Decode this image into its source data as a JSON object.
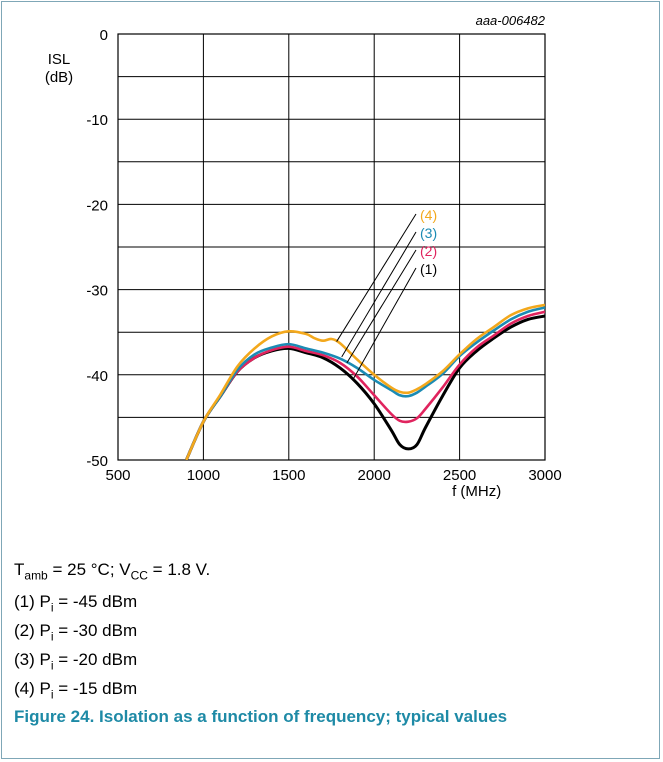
{
  "chart_data": {
    "type": "line",
    "figure_id": "aaa-006482",
    "ylabel": "ISL",
    "ylabel_unit": "(dB)",
    "xlabel": "f (MHz)",
    "xlim": [
      500,
      3000
    ],
    "ylim": [
      -50,
      0
    ],
    "x_ticks": [
      500,
      1000,
      1500,
      2000,
      2500,
      3000
    ],
    "x_tick_labels": [
      "500",
      "1000",
      "1500",
      "2000",
      "2500",
      "3000"
    ],
    "y_ticks": [
      0,
      -10,
      -20,
      -30,
      -40,
      -50
    ],
    "y_tick_labels": [
      "0",
      "-10",
      "-20",
      "-30",
      "-40",
      "-50"
    ],
    "grid": true,
    "series": [
      {
        "name": "(1)",
        "color": "#000000",
        "x": [
          900,
          1000,
          1100,
          1200,
          1300,
          1400,
          1500,
          1600,
          1700,
          1800,
          1900,
          2000,
          2100,
          2150,
          2200,
          2250,
          2300,
          2400,
          2500,
          2600,
          2700,
          2800,
          2900,
          3000
        ],
        "y": [
          -50,
          -45.5,
          -42.5,
          -39.6,
          -38,
          -37.2,
          -36.9,
          -37.4,
          -38,
          -39.2,
          -41,
          -43.4,
          -46.5,
          -48.2,
          -48.7,
          -48.2,
          -46.2,
          -42.5,
          -39.2,
          -37.2,
          -35.7,
          -34.4,
          -33.5,
          -33.1
        ]
      },
      {
        "name": "(2)",
        "color": "#e0245e",
        "x": [
          900,
          1000,
          1100,
          1200,
          1300,
          1400,
          1500,
          1600,
          1700,
          1800,
          1900,
          2000,
          2100,
          2150,
          2200,
          2250,
          2300,
          2400,
          2500,
          2600,
          2700,
          2800,
          2900,
          3000
        ],
        "y": [
          -50,
          -45.5,
          -42.5,
          -39.6,
          -38,
          -37.1,
          -36.7,
          -37.2,
          -37.7,
          -38.6,
          -40.2,
          -42.4,
          -44.6,
          -45.4,
          -45.5,
          -45.1,
          -44,
          -41.5,
          -38.8,
          -36.8,
          -35.4,
          -34,
          -33.1,
          -32.6
        ]
      },
      {
        "name": "(3)",
        "color": "#1b8bb4",
        "x": [
          900,
          1000,
          1100,
          1200,
          1300,
          1400,
          1500,
          1600,
          1700,
          1800,
          1900,
          2000,
          2100,
          2150,
          2200,
          2250,
          2300,
          2400,
          2500,
          2600,
          2700,
          2800,
          2900,
          3000
        ],
        "y": [
          -50,
          -45.5,
          -42.5,
          -39.4,
          -37.6,
          -36.8,
          -36.4,
          -36.9,
          -37.4,
          -38.1,
          -39.2,
          -40.6,
          -41.8,
          -42.4,
          -42.5,
          -42.1,
          -41.4,
          -39.9,
          -37.8,
          -36.2,
          -34.8,
          -33.5,
          -32.6,
          -32.1
        ]
      },
      {
        "name": "(4)",
        "color": "#f3a81c",
        "x": [
          900,
          1000,
          1100,
          1200,
          1300,
          1400,
          1500,
          1600,
          1650,
          1700,
          1750,
          1800,
          1900,
          2000,
          2100,
          2150,
          2200,
          2250,
          2300,
          2400,
          2500,
          2600,
          2700,
          2800,
          2900,
          3000
        ],
        "y": [
          -50,
          -45.5,
          -42.3,
          -39,
          -36.9,
          -35.5,
          -34.9,
          -35.2,
          -35.7,
          -36,
          -35.8,
          -36.3,
          -38.2,
          -40,
          -41.5,
          -42,
          -42.1,
          -41.7,
          -41.1,
          -39.6,
          -37.6,
          -35.8,
          -34.4,
          -33,
          -32.2,
          -31.8
        ]
      }
    ],
    "annotations": [
      "(4)",
      "(3)",
      "(2)",
      "(1)"
    ]
  },
  "caption": {
    "conditions": {
      "t_sym": "T",
      "t_sub": "amb",
      "t_rest": " = 25 °C; V",
      "v_sub": "CC",
      "v_rest": " = 1.8 V."
    },
    "notes": [
      {
        "num": "(1) P",
        "sub": "i",
        "rest": " = -45 dBm"
      },
      {
        "num": "(2) P",
        "sub": "i",
        "rest": " = -30 dBm"
      },
      {
        "num": "(3) P",
        "sub": "i",
        "rest": " = -20 dBm"
      },
      {
        "num": "(4) P",
        "sub": "i",
        "rest": " = -15 dBm"
      }
    ],
    "figure_title": "Figure 24.  Isolation as a function of frequency; typical values"
  }
}
